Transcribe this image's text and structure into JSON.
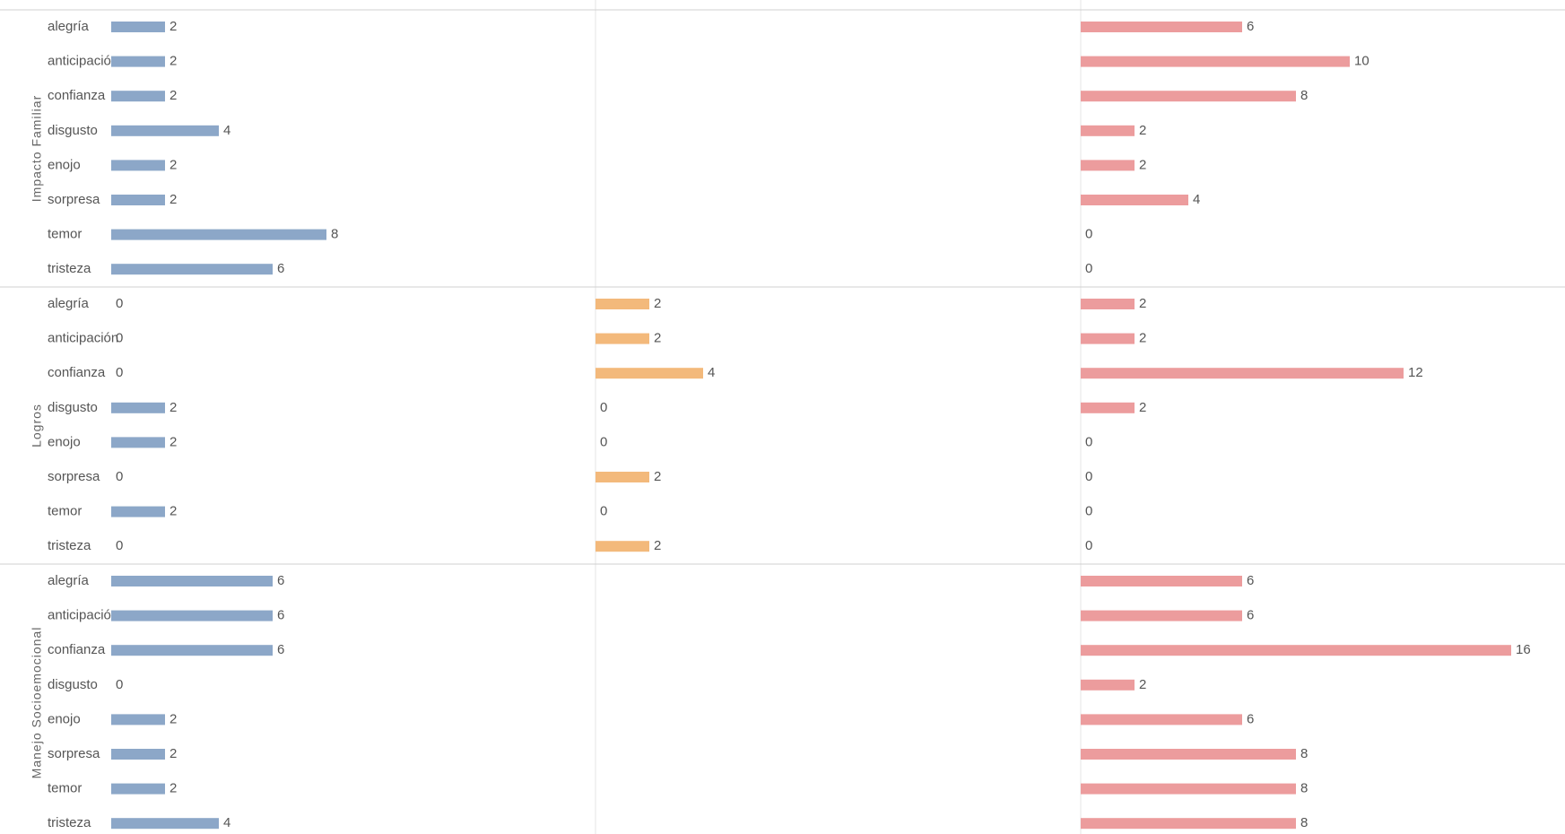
{
  "chart_data": {
    "type": "bar",
    "categories": [
      "alegría",
      "anticipación",
      "confianza",
      "disgusto",
      "enojo",
      "sorpresa",
      "temor",
      "tristeza"
    ],
    "xlim": [
      0,
      18
    ],
    "panels": [
      {
        "name": "Impacto Familiar",
        "series": [
          {
            "color": "#8ca7c8",
            "values": [
              2,
              2,
              2,
              4,
              2,
              2,
              8,
              6
            ]
          },
          {
            "color": "#f3b97b",
            "values": [
              null,
              null,
              null,
              null,
              null,
              null,
              null,
              null
            ]
          },
          {
            "color": "#ec9c9d",
            "values": [
              6,
              10,
              8,
              2,
              2,
              4,
              0,
              0
            ]
          }
        ]
      },
      {
        "name": "Logros",
        "series": [
          {
            "color": "#8ca7c8",
            "values": [
              0,
              0,
              0,
              2,
              2,
              0,
              2,
              0
            ]
          },
          {
            "color": "#f3b97b",
            "values": [
              2,
              2,
              4,
              0,
              0,
              2,
              0,
              2
            ]
          },
          {
            "color": "#ec9c9d",
            "values": [
              2,
              2,
              12,
              2,
              0,
              0,
              0,
              0
            ]
          }
        ]
      },
      {
        "name": "Manejo Socioemocional",
        "series": [
          {
            "color": "#8ca7c8",
            "values": [
              6,
              6,
              6,
              0,
              2,
              2,
              2,
              4
            ]
          },
          {
            "color": "#f3b97b",
            "values": [
              null,
              null,
              null,
              null,
              null,
              null,
              null,
              null
            ]
          },
          {
            "color": "#ec9c9d",
            "values": [
              6,
              6,
              16,
              2,
              6,
              8,
              8,
              8
            ]
          }
        ]
      }
    ]
  }
}
